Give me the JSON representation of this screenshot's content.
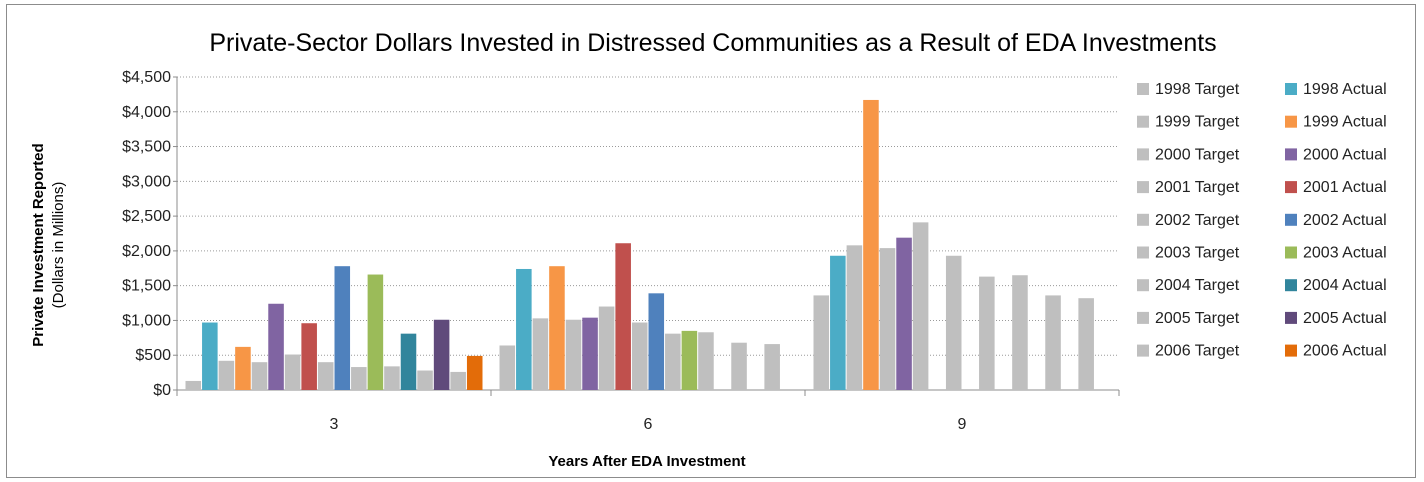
{
  "chart_data": {
    "type": "bar",
    "title": "Private-Sector Dollars Invested in Distressed Communities as a Result of EDA Investments",
    "xlabel": "Years After EDA Investment",
    "ylabel": "Private Investment Reported",
    "ylabel_sub": "(Dollars in Millions)",
    "categories": [
      "3",
      "6",
      "9"
    ],
    "ylim": [
      0,
      4500
    ],
    "yticks": [
      "$0",
      "$500",
      "$1,000",
      "$1,500",
      "$2,000",
      "$2,500",
      "$3,000",
      "$3,500",
      "$4,000",
      "$4,500"
    ],
    "grid": true,
    "legend_position": "right",
    "series": [
      {
        "name": "1998 Target",
        "color": "#bfbfbf",
        "values": [
          130,
          640,
          1360
        ]
      },
      {
        "name": "1998 Actual",
        "color": "#4bacc6",
        "values": [
          970,
          1740,
          1930
        ]
      },
      {
        "name": "1999 Target",
        "color": "#bfbfbf",
        "values": [
          420,
          1030,
          2080
        ]
      },
      {
        "name": "1999 Actual",
        "color": "#f79646",
        "values": [
          620,
          1780,
          4170
        ]
      },
      {
        "name": "2000 Target",
        "color": "#bfbfbf",
        "values": [
          400,
          1010,
          2040
        ]
      },
      {
        "name": "2000 Actual",
        "color": "#8064a2",
        "values": [
          1240,
          1040,
          2190
        ]
      },
      {
        "name": "2001 Target",
        "color": "#bfbfbf",
        "values": [
          510,
          1200,
          2410
        ]
      },
      {
        "name": "2001 Actual",
        "color": "#c0504d",
        "values": [
          960,
          2110,
          null
        ]
      },
      {
        "name": "2002 Target",
        "color": "#bfbfbf",
        "values": [
          400,
          970,
          1930
        ]
      },
      {
        "name": "2002 Actual",
        "color": "#4f81bd",
        "values": [
          1780,
          1390,
          null
        ]
      },
      {
        "name": "2003 Target",
        "color": "#bfbfbf",
        "values": [
          330,
          810,
          1630
        ]
      },
      {
        "name": "2003 Actual",
        "color": "#9bbb59",
        "values": [
          1660,
          850,
          null
        ]
      },
      {
        "name": "2004 Target",
        "color": "#bfbfbf",
        "values": [
          340,
          830,
          1650
        ]
      },
      {
        "name": "2004 Actual",
        "color": "#31859c",
        "values": [
          810,
          null,
          null
        ]
      },
      {
        "name": "2005 Target",
        "color": "#bfbfbf",
        "values": [
          280,
          680,
          1360
        ]
      },
      {
        "name": "2005 Actual",
        "color": "#604a7b",
        "values": [
          1010,
          null,
          null
        ]
      },
      {
        "name": "2006 Target",
        "color": "#bfbfbf",
        "values": [
          260,
          660,
          1320
        ]
      },
      {
        "name": "2006 Actual",
        "color": "#e36c09",
        "values": [
          490,
          null,
          null
        ]
      }
    ]
  }
}
